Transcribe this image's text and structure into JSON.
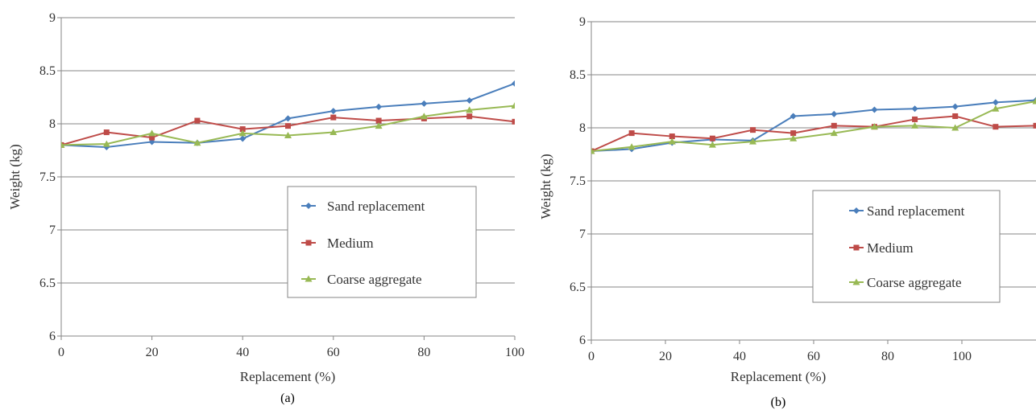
{
  "chart_data": [
    {
      "type": "line",
      "caption": "(a)",
      "xlabel": "Replacement (%)",
      "ylabel": "Weight (kg)",
      "xlim": [
        0,
        100
      ],
      "ylim": [
        6,
        9
      ],
      "xticks": [
        0,
        20,
        40,
        60,
        80,
        100
      ],
      "xtick_labels": [
        "0",
        "20",
        "40",
        "60",
        "80",
        "100"
      ],
      "yticks": [
        6,
        6.5,
        7,
        7.5,
        8,
        8.5,
        9
      ],
      "ytick_labels": [
        "6",
        "6.5",
        "7",
        "7.5",
        "8",
        "8.5",
        "9"
      ],
      "grid": "horizontal",
      "legend": "lower-right",
      "x": [
        0,
        10,
        20,
        30,
        40,
        50,
        60,
        70,
        80,
        90,
        100
      ],
      "series": [
        {
          "name": "Sand replacement",
          "color": "#4a7ebb",
          "marker": "diamond",
          "values": [
            7.8,
            7.78,
            7.83,
            7.82,
            7.86,
            8.05,
            8.12,
            8.16,
            8.19,
            8.22,
            8.38
          ]
        },
        {
          "name": "Medium",
          "color": "#be4b48",
          "marker": "square",
          "values": [
            7.8,
            7.92,
            7.87,
            8.03,
            7.95,
            7.98,
            8.06,
            8.03,
            8.05,
            8.07,
            8.02
          ]
        },
        {
          "name": "Coarse aggregate",
          "color": "#98b954",
          "marker": "triangle",
          "values": [
            7.8,
            7.81,
            7.91,
            7.82,
            7.91,
            7.89,
            7.92,
            7.98,
            8.07,
            8.13,
            8.17
          ]
        }
      ]
    },
    {
      "type": "line",
      "caption": "(b)",
      "xlabel": "Replacement (%)",
      "ylabel": "Weight (kg)",
      "xlim": [
        0,
        120
      ],
      "ylim": [
        6,
        9
      ],
      "xticks": [
        0,
        20,
        40,
        60,
        80,
        100
      ],
      "xtick_labels": [
        "0",
        "20",
        "40",
        "60",
        "80",
        "100"
      ],
      "yticks": [
        6,
        6.5,
        7,
        7.5,
        8,
        8.5,
        9
      ],
      "ytick_labels": [
        "6",
        "6.5",
        "7",
        "7.5",
        "8",
        "8.5",
        "9"
      ],
      "grid": "horizontal",
      "legend": "lower-right",
      "x": [
        0,
        10.9,
        21.8,
        32.7,
        43.6,
        54.5,
        65.5,
        76.4,
        87.3,
        98.2,
        109.1,
        120
      ],
      "series": [
        {
          "name": "Sand replacement",
          "color": "#4a7ebb",
          "marker": "diamond",
          "values": [
            7.78,
            7.8,
            7.86,
            7.89,
            7.88,
            8.11,
            8.13,
            8.17,
            8.18,
            8.2,
            8.24,
            8.26
          ]
        },
        {
          "name": "Medium",
          "color": "#be4b48",
          "marker": "square",
          "values": [
            7.78,
            7.95,
            7.92,
            7.9,
            7.98,
            7.95,
            8.02,
            8.01,
            8.08,
            8.11,
            8.01,
            8.02
          ]
        },
        {
          "name": "Coarse aggregate",
          "color": "#98b954",
          "marker": "triangle",
          "values": [
            7.78,
            7.82,
            7.87,
            7.84,
            7.87,
            7.9,
            7.95,
            8.01,
            8.02,
            8.0,
            8.18,
            8.25
          ]
        }
      ]
    }
  ]
}
